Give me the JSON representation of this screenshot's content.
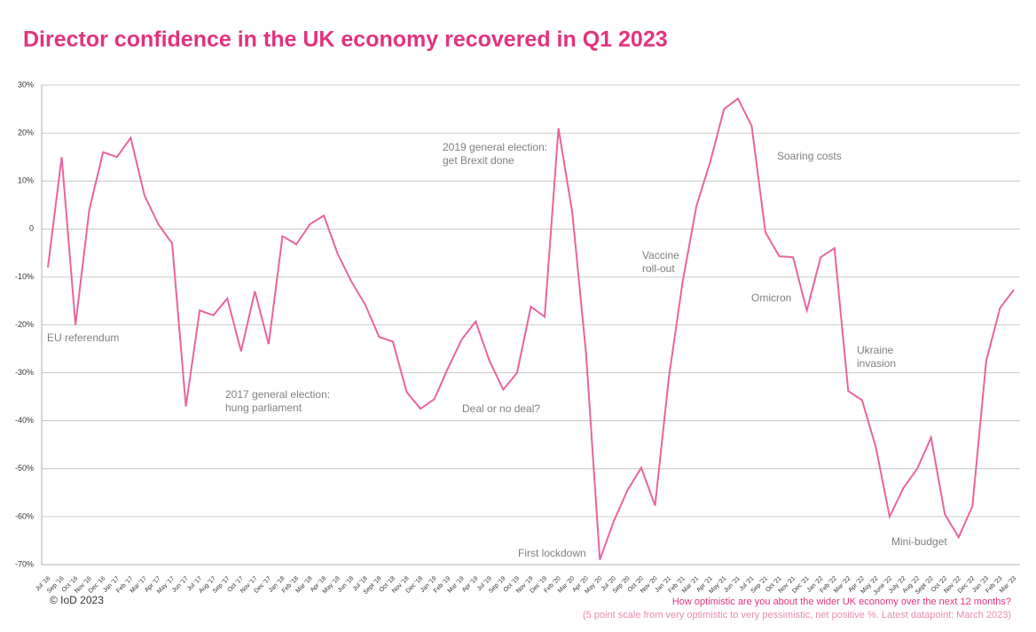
{
  "chart_data": {
    "type": "line",
    "title": "Director confidence in the UK economy recovered in Q1 2023",
    "categories": [
      "Jul '16",
      "Sep '16",
      "Oct '16",
      "Nov '16",
      "Dec '16",
      "Jan '17",
      "Feb '17",
      "Mar '17",
      "Apr '17",
      "May '17",
      "Jun '17",
      "Jul '17",
      "Aug '17",
      "Sep '17",
      "Oct '17",
      "Nov '17",
      "Dec '17",
      "Jan '18",
      "Feb '18",
      "Mar '18",
      "Apr '18",
      "May '18",
      "Jun '18",
      "Jul '18",
      "Sept '18",
      "Oct '18",
      "Nov '18",
      "Dec '18",
      "Jan '19",
      "Feb '19",
      "Mar '19",
      "Apr '19",
      "Jul '19",
      "Sep '19",
      "Oct '19",
      "Nov '19",
      "Dec '19",
      "Feb '20",
      "Mar '20",
      "Apr '20",
      "May '20",
      "Jul '20",
      "Sep '20",
      "Oct '20",
      "Nov '20",
      "Jan '21",
      "Feb '21",
      "Mar '21",
      "Apr '21",
      "May '21",
      "Jun '21",
      "Jul '21",
      "Sep '21",
      "Oct '21",
      "Nov '21",
      "Dec '21",
      "Jan '22",
      "Feb '22",
      "Mar '22",
      "Apr '22",
      "May '22",
      "June '22",
      "July '22",
      "Aug '22",
      "Sept '22",
      "Oct '22",
      "Nov '22",
      "Dec '22",
      "Jan '23",
      "Feb '23",
      "Mar '23"
    ],
    "series": [
      {
        "name": "Director confidence",
        "color": "#e8649f",
        "values": [
          -8,
          15,
          -20,
          4,
          16,
          15,
          19,
          7,
          1,
          -3,
          -37,
          -17,
          -18,
          -14.5,
          -25.5,
          -13,
          -24,
          -1.5,
          -3.2,
          1,
          2.8,
          -5.2,
          -11,
          -15.8,
          -22.5,
          -23.5,
          -34,
          -37.5,
          -35.5,
          -29,
          -23,
          -19.3,
          -27.5,
          -33.5,
          -30,
          -16.2,
          -18.3,
          21,
          3.5,
          -26,
          -69,
          -61,
          -54.5,
          -49.8,
          -57.7,
          -31,
          -11,
          4.8,
          14,
          25,
          27.2,
          21.5,
          -0.7,
          -5.7,
          -5.9,
          -17,
          -5.9,
          -4,
          -33.8,
          -35.7,
          -45.5,
          -60,
          -54,
          -50,
          -43.5,
          -59.5,
          -64.3,
          -57.8,
          -27.5,
          -16.5,
          -12.7
        ]
      }
    ],
    "ylim": [
      -70,
      30
    ],
    "yticks": [
      {
        "value": -70,
        "label": "-70%"
      },
      {
        "value": -60,
        "label": "-60%"
      },
      {
        "value": -50,
        "label": "-50%"
      },
      {
        "value": -40,
        "label": "-40%"
      },
      {
        "value": -30,
        "label": "-30%"
      },
      {
        "value": -20,
        "label": "-20%"
      },
      {
        "value": -10,
        "label": "-10%"
      },
      {
        "value": 0,
        "label": "0"
      },
      {
        "value": 10,
        "label": "10%"
      },
      {
        "value": 20,
        "label": "20%"
      },
      {
        "value": 30,
        "label": "30%"
      }
    ],
    "grid": true,
    "annotations": [
      [
        "EU referendum"
      ],
      [
        "2017 general election:",
        "hung parliament"
      ],
      [
        "Deal or no deal?"
      ],
      [
        "2019 general election:",
        "get Brexit done"
      ],
      [
        "First lockdown"
      ],
      [
        "Vaccine",
        "roll-out"
      ],
      [
        "Soaring costs"
      ],
      [
        "Omicron"
      ],
      [
        "Ukraine",
        "invasion"
      ],
      [
        "Mini-budget"
      ]
    ],
    "source": "© IoD 2023",
    "note": [
      "How optimistic are you about the wider UK economy over the next 12 months?",
      "(5 point scale from very optimistic to very pessimistic, net positive %. Latest datapoint: March 2023)"
    ]
  }
}
